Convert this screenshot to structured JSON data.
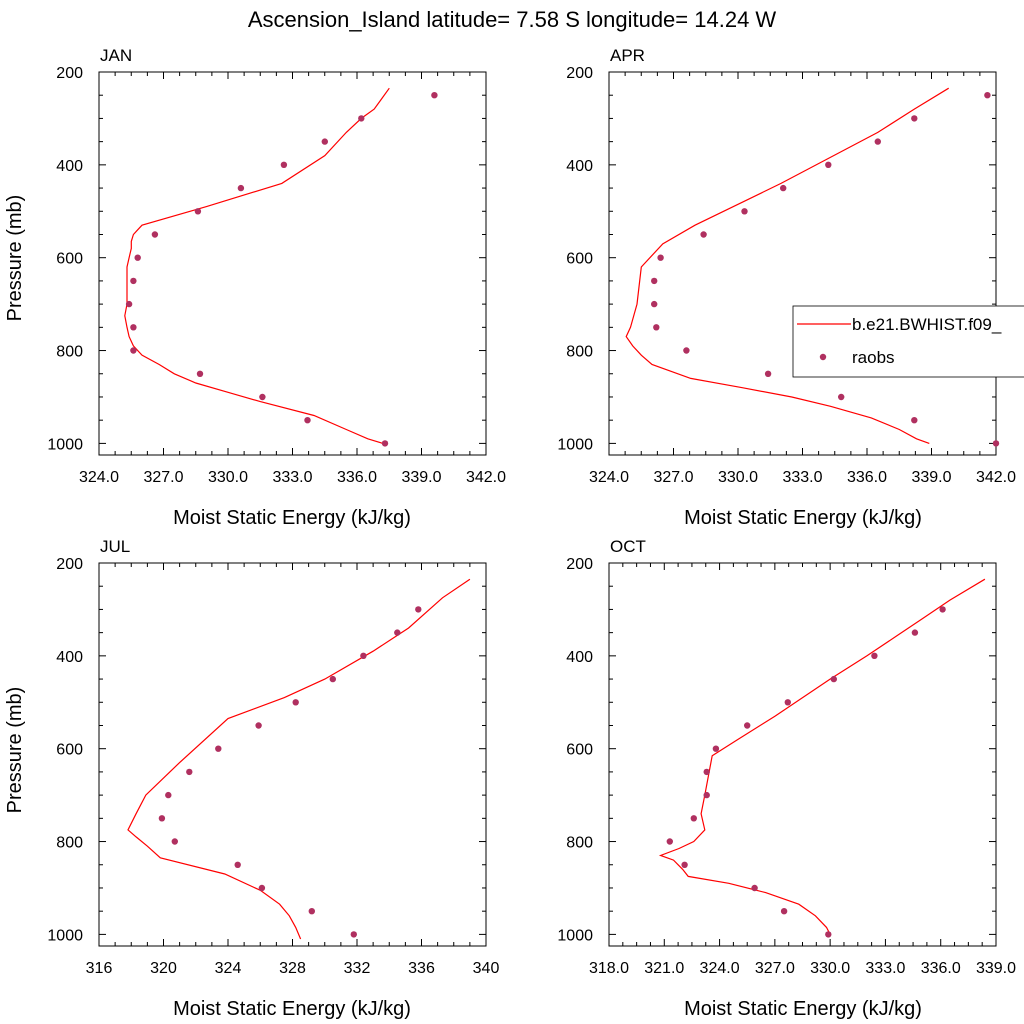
{
  "title": "Ascension_Island  latitude= 7.58 S longitude= 14.24 W",
  "chart_data": [
    {
      "type": "line",
      "panel": "JAN",
      "xlabel": "Moist Static Energy (kJ/kg)",
      "ylabel": "Pressure (mb)",
      "xlim": [
        324,
        342
      ],
      "ylim": [
        200,
        1025
      ],
      "y_reversed": true,
      "xticks": [
        324,
        327,
        330,
        333,
        336,
        339,
        342
      ],
      "xtick_labels": [
        "324.0",
        "327.0",
        "330.0",
        "333.0",
        "336.0",
        "339.0",
        "342.0"
      ],
      "yticks": [
        200,
        400,
        600,
        800,
        1000
      ],
      "ytick_labels": [
        "200",
        "400",
        "600",
        "800",
        "1000"
      ],
      "series": [
        {
          "kind": "line",
          "color": "#ff0000",
          "x": [
            337.2,
            336.5,
            335.5,
            334,
            331.5,
            330,
            328.5,
            327.5,
            326.8,
            326,
            325.6,
            325.4,
            325.3,
            325.2,
            325.3,
            325.3,
            325.3,
            325.4,
            325.5,
            325.5,
            325.6,
            325.8,
            326,
            329,
            332.5,
            334.5,
            335.5,
            336.2,
            336.8,
            337.5
          ],
          "y": [
            1000,
            990,
            970,
            940,
            910,
            890,
            870,
            850,
            830,
            810,
            790,
            770,
            750,
            725,
            700,
            650,
            620,
            600,
            580,
            565,
            550,
            540,
            530,
            490,
            440,
            380,
            330,
            300,
            280,
            235
          ]
        },
        {
          "kind": "scatter",
          "color": "#b03060",
          "x": [
            337.3,
            333.7,
            331.6,
            328.7,
            325.6,
            325.6,
            325.4,
            325.6,
            325.8,
            326.6,
            328.6,
            330.6,
            332.6,
            334.5,
            336.2,
            339.6
          ],
          "y": [
            1000,
            950,
            900,
            850,
            800,
            750,
            700,
            650,
            600,
            550,
            500,
            450,
            400,
            350,
            300,
            250
          ]
        }
      ]
    },
    {
      "type": "line",
      "panel": "APR",
      "xlabel": "Moist Static Energy (kJ/kg)",
      "ylabel": "",
      "xlim": [
        324,
        342
      ],
      "ylim": [
        200,
        1025
      ],
      "y_reversed": true,
      "xticks": [
        324,
        327,
        330,
        333,
        336,
        339,
        342
      ],
      "xtick_labels": [
        "324.0",
        "327.0",
        "330.0",
        "333.0",
        "336.0",
        "339.0",
        "342.0"
      ],
      "yticks": [
        200,
        400,
        600,
        800,
        1000
      ],
      "ytick_labels": [
        "200",
        "400",
        "600",
        "800",
        "1000"
      ],
      "legend": {
        "placement": "right",
        "entries": [
          "b.e21.BWHIST.f09_",
          "raobs"
        ]
      },
      "series": [
        {
          "kind": "line",
          "name": "b.e21.BWHIST.f09_",
          "color": "#ff0000",
          "x": [
            338.9,
            338.3,
            337.5,
            336.2,
            334.3,
            332.5,
            330.2,
            327.8,
            326.0,
            325.5,
            325.1,
            324.8,
            325.0,
            325.3,
            325.5,
            326.5,
            328.0,
            332.0,
            336.5,
            338.2,
            339.8
          ],
          "y": [
            1000,
            990,
            970,
            945,
            920,
            900,
            880,
            860,
            830,
            810,
            790,
            770,
            750,
            700,
            620,
            570,
            530,
            440,
            330,
            280,
            235
          ]
        },
        {
          "kind": "scatter",
          "name": "raobs",
          "color": "#b03060",
          "x": [
            342.0,
            338.2,
            334.8,
            331.4,
            327.6,
            326.2,
            326.1,
            326.1,
            326.4,
            328.4,
            330.3,
            332.1,
            334.2,
            336.5,
            338.2,
            341.6
          ],
          "y": [
            1000,
            950,
            900,
            850,
            800,
            750,
            700,
            650,
            600,
            550,
            500,
            450,
            400,
            350,
            300,
            250
          ]
        }
      ]
    },
    {
      "type": "line",
      "panel": "JUL",
      "xlabel": "Moist Static Energy (kJ/kg)",
      "ylabel": "Pressure (mb)",
      "xlim": [
        316,
        340
      ],
      "ylim": [
        200,
        1025
      ],
      "y_reversed": true,
      "xticks": [
        316,
        320,
        324,
        328,
        332,
        336,
        340
      ],
      "xtick_labels": [
        "316",
        "320",
        "324",
        "328",
        "332",
        "336",
        "340"
      ],
      "yticks": [
        200,
        400,
        600,
        800,
        1000
      ],
      "ytick_labels": [
        "200",
        "400",
        "600",
        "800",
        "1000"
      ],
      "series": [
        {
          "kind": "line",
          "color": "#ff0000",
          "x": [
            328.5,
            328.2,
            327.8,
            327.2,
            326.0,
            323.8,
            319.8,
            319.0,
            318.3,
            317.8,
            318.3,
            318.9,
            321.0,
            324.0,
            327.5,
            330.0,
            333.0,
            335.2,
            337.3,
            339.0
          ],
          "y": [
            1010,
            985,
            960,
            935,
            905,
            870,
            835,
            810,
            790,
            775,
            740,
            700,
            630,
            535,
            490,
            450,
            390,
            340,
            275,
            235
          ]
        },
        {
          "kind": "scatter",
          "color": "#b03060",
          "x": [
            331.8,
            329.2,
            326.1,
            324.6,
            320.7,
            319.9,
            320.3,
            321.6,
            323.4,
            325.9,
            328.2,
            330.5,
            332.4,
            334.5,
            335.8
          ],
          "y": [
            1000,
            950,
            900,
            850,
            800,
            750,
            700,
            650,
            600,
            550,
            500,
            450,
            400,
            350,
            300
          ]
        }
      ]
    },
    {
      "type": "line",
      "panel": "OCT",
      "xlabel": "Moist Static Energy (kJ/kg)",
      "ylabel": "",
      "xlim": [
        318,
        339
      ],
      "ylim": [
        200,
        1025
      ],
      "y_reversed": true,
      "xticks": [
        318,
        321,
        324,
        327,
        330,
        333,
        336,
        339
      ],
      "xtick_labels": [
        "318.0",
        "321.0",
        "324.0",
        "327.0",
        "330.0",
        "333.0",
        "336.0",
        "339.0"
      ],
      "yticks": [
        200,
        400,
        600,
        800,
        1000
      ],
      "ytick_labels": [
        "200",
        "400",
        "600",
        "800",
        "1000"
      ],
      "series": [
        {
          "kind": "line",
          "color": "#ff0000",
          "x": [
            330.0,
            329.8,
            329.2,
            328.3,
            326.5,
            324.5,
            322.3,
            322.0,
            321.5,
            320.8,
            321.8,
            322.6,
            323.2,
            323.0,
            323.2,
            323.6,
            325.0,
            327.0,
            330.0,
            332.0,
            335.0,
            336.5,
            338.4
          ],
          "y": [
            1000,
            985,
            960,
            935,
            910,
            890,
            875,
            860,
            840,
            830,
            815,
            800,
            775,
            740,
            700,
            615,
            580,
            530,
            450,
            400,
            320,
            280,
            235
          ]
        },
        {
          "kind": "scatter",
          "color": "#b03060",
          "x": [
            329.9,
            327.5,
            325.9,
            322.1,
            321.3,
            322.6,
            323.3,
            323.3,
            323.8,
            325.5,
            327.7,
            330.2,
            332.4,
            334.6,
            336.1
          ],
          "y": [
            1000,
            950,
            900,
            850,
            800,
            750,
            700,
            650,
            600,
            550,
            500,
            450,
            400,
            350,
            300
          ]
        }
      ]
    }
  ]
}
